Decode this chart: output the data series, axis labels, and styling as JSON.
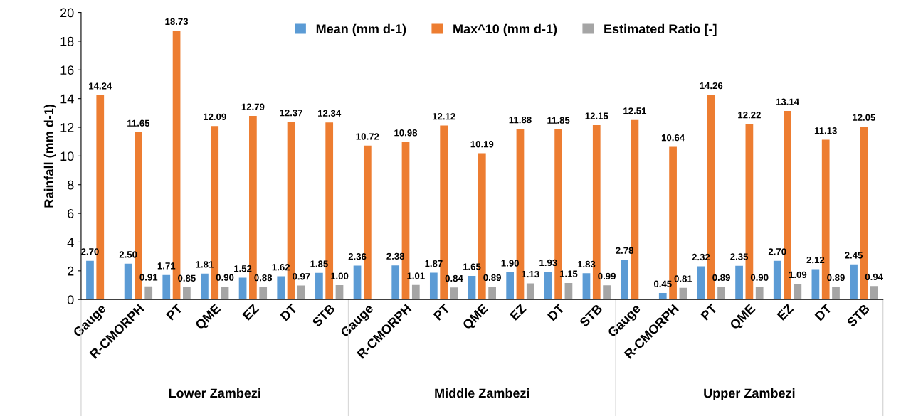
{
  "chart_data": {
    "type": "bar",
    "ylabel": "Rainfall (mm d-1)",
    "categories": [
      "Gauge",
      "R-CMORPH",
      "PT",
      "QME",
      "EZ",
      "DT",
      "STB",
      "Gauge",
      "R-CMORPH",
      "PT",
      "QME",
      "EZ",
      "DT",
      "STB",
      "Gauge",
      "R-CMORPH",
      "PT",
      "QME",
      "EZ",
      "DT",
      "STB"
    ],
    "series": [
      {
        "name": "Mean (mm d-1)",
        "color": "#5b9bd5",
        "values": [
          2.7,
          2.5,
          1.71,
          1.81,
          1.52,
          1.62,
          1.85,
          2.36,
          2.38,
          1.87,
          1.65,
          1.9,
          1.93,
          1.83,
          2.78,
          0.45,
          2.32,
          2.35,
          2.7,
          2.12,
          2.45
        ],
        "value_labels": [
          "2.70",
          "2.50",
          "1.71",
          "1.81",
          "1.52",
          "1.62",
          "1.85",
          "2.36",
          "2.38",
          "1.87",
          "1.65",
          "1.90",
          "1.93",
          "1.83",
          "2.78",
          "0.45",
          "2.32",
          "2.35",
          "2.70",
          "2.12",
          "2.45"
        ]
      },
      {
        "name": "Max^10 (mm d-1)",
        "color": "#ed7d31",
        "values": [
          14.24,
          11.65,
          18.73,
          12.09,
          12.79,
          12.37,
          12.34,
          10.72,
          10.98,
          12.12,
          10.19,
          11.88,
          11.85,
          12.15,
          12.51,
          10.64,
          14.26,
          12.22,
          13.14,
          11.13,
          12.05
        ],
        "value_labels": [
          "14.24",
          "11.65",
          "18.73",
          "12.09",
          "12.79",
          "12.37",
          "12.34",
          "10.72",
          "10.98",
          "12.12",
          "10.19",
          "11.88",
          "11.85",
          "12.15",
          "12.51",
          "10.64",
          "14.26",
          "12.22",
          "13.14",
          "11.13",
          "12.05"
        ]
      },
      {
        "name": "Estimated Ratio [-]",
        "color": "#a5a5a5",
        "values": [
          null,
          0.91,
          0.85,
          0.9,
          0.88,
          0.97,
          1.0,
          null,
          1.01,
          0.84,
          0.89,
          1.13,
          1.15,
          0.99,
          null,
          0.81,
          0.89,
          0.9,
          1.09,
          0.89,
          0.94
        ],
        "value_labels": [
          null,
          "0.91",
          "0.85",
          "0.90",
          "0.88",
          "0.97",
          "1.00",
          null,
          "1.01",
          "0.84",
          "0.89",
          "1.13",
          "1.15",
          "0.99",
          null,
          "0.81",
          "0.89",
          "0.90",
          "1.09",
          "0.89",
          "0.94"
        ]
      }
    ],
    "annotations": [
      "Lower Zambezi",
      "Middle Zambezi",
      "Upper Zambezi"
    ],
    "ylim": [
      0,
      20
    ],
    "yticks": [
      0,
      2,
      4,
      6,
      8,
      10,
      12,
      14,
      16,
      18,
      20
    ],
    "grid": false,
    "legend": "top"
  }
}
